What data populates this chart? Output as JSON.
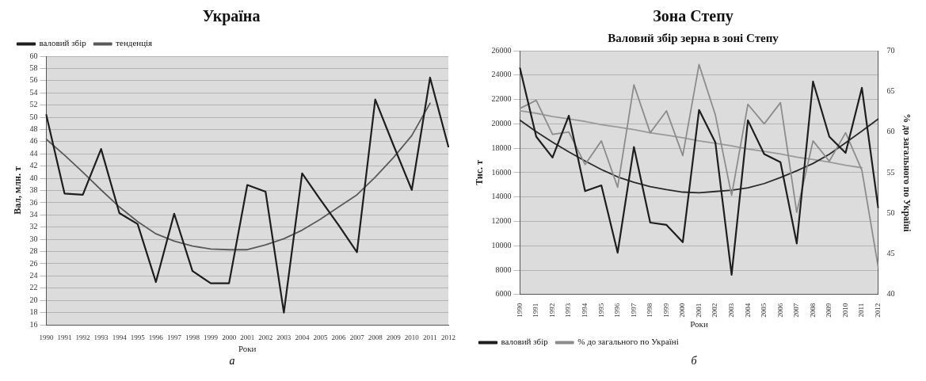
{
  "chart_data": [
    {
      "type": "line",
      "title": "Україна",
      "xlabel": "Роки",
      "ylabel": "Вал, млн. т",
      "annotations": [
        "а"
      ],
      "categories": [
        "1990",
        "1991",
        "1992",
        "1993",
        "1994",
        "1995",
        "1996",
        "1997",
        "1998",
        "1999",
        "2000",
        "2001",
        "2002",
        "2003",
        "2004",
        "2005",
        "2006",
        "2007",
        "2008",
        "2009",
        "2010",
        "2011",
        "2012"
      ],
      "series": [
        {
          "name": "валовий збір",
          "color": "#1e1e1e",
          "values": [
            50.4,
            37.5,
            37.3,
            44.8,
            34.3,
            32.5,
            23.0,
            34.2,
            24.8,
            22.8,
            22.8,
            38.9,
            37.8,
            18.0,
            40.8,
            36.5,
            32.3,
            27.9,
            52.9,
            45.4,
            38.1,
            56.5,
            45.2
          ]
        },
        {
          "name": "тенденція",
          "color": "#5a5a5a",
          "values": [
            46.4,
            43.8,
            41.0,
            38.1,
            35.3,
            32.9,
            30.9,
            29.7,
            28.9,
            28.4,
            28.3,
            28.3,
            29.1,
            30.1,
            31.5,
            33.3,
            35.3,
            37.3,
            40.2,
            43.4,
            47.0,
            52.3,
            null
          ]
        }
      ],
      "ylim": [
        16,
        60
      ],
      "yticks": [
        16,
        18,
        20,
        22,
        24,
        26,
        28,
        30,
        32,
        34,
        36,
        38,
        40,
        42,
        44,
        46,
        48,
        50,
        52,
        54,
        56,
        58,
        60
      ],
      "grid": "y",
      "legend": "top left",
      "marker": "none",
      "line_style": "solid"
    },
    {
      "type": "line",
      "title": "Зона Степу",
      "subtitle": "Валовий збір зерна в зоні Степу",
      "xlabel": "Роки",
      "ylabel": "Тис. т",
      "y2label": "% до загального по Україні",
      "annotations": [
        "б"
      ],
      "categories": [
        "1990",
        "1991",
        "1992",
        "1993",
        "1994",
        "1995",
        "1996",
        "1997",
        "1998",
        "1999",
        "2000",
        "2001",
        "2002",
        "2003",
        "2004",
        "2005",
        "2006",
        "2007",
        "2008",
        "2009",
        "2010",
        "2011",
        "2012"
      ],
      "series": [
        {
          "name": "валовий збір",
          "color": "#1e1e1e",
          "values": [
            24570,
            18950,
            17240,
            20670,
            14480,
            14950,
            9430,
            18100,
            11900,
            11710,
            10290,
            21140,
            18480,
            7620,
            20290,
            17520,
            16860,
            10190,
            23470,
            18950,
            17620,
            22950,
            13140
          ]
        },
        {
          "name": "% до загального по Україні",
          "color": "#8c8c8c",
          "axis": "y2",
          "values": [
            62.9,
            63.9,
            59.7,
            60.0,
            56.0,
            58.9,
            53.2,
            65.8,
            59.9,
            62.6,
            57.1,
            68.3,
            62.1,
            52.2,
            63.4,
            61.0,
            63.6,
            50.1,
            58.9,
            56.4,
            59.9,
            55.3,
            43.4
          ]
        },
        {
          "color": "#2a2a2a",
          "values": [
            20300,
            19350,
            18500,
            17700,
            16950,
            16250,
            15650,
            15200,
            14850,
            14600,
            14400,
            14350,
            14450,
            14550,
            14750,
            15100,
            15600,
            16150,
            16750,
            17500,
            18450,
            19400,
            20400
          ]
        },
        {
          "color": "#9a9a9a",
          "axis": "y2",
          "values": [
            62.6,
            62.3,
            61.9,
            61.6,
            61.3,
            60.9,
            60.6,
            60.3,
            59.9,
            59.6,
            59.3,
            58.9,
            58.6,
            58.3,
            57.9,
            57.6,
            57.3,
            56.9,
            56.6,
            56.3,
            55.9,
            55.6,
            null
          ]
        }
      ],
      "ylim": [
        6000,
        26000
      ],
      "yticks": [
        6000,
        8000,
        10000,
        12000,
        14000,
        16000,
        18000,
        20000,
        22000,
        24000,
        26000
      ],
      "y2lim": [
        40,
        70
      ],
      "y2ticks": [
        40,
        45,
        50,
        55,
        60,
        65,
        70
      ],
      "grid": "y",
      "legend": "bottom left",
      "marker": "none",
      "line_style": "solid"
    }
  ]
}
